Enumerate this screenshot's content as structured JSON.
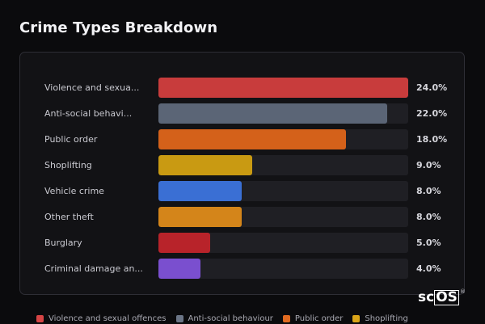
{
  "chart_data": {
    "type": "bar",
    "title": "Crime Types Breakdown",
    "categories": [
      "Violence and sexua...",
      "Anti-social behavi...",
      "Public order",
      "Shoplifting",
      "Vehicle crime",
      "Other theft",
      "Burglary",
      "Criminal damage an..."
    ],
    "values": [
      24.0,
      22.0,
      18.0,
      9.0,
      8.0,
      8.0,
      5.0,
      4.0
    ],
    "value_labels": [
      "24.0%",
      "22.0%",
      "18.0%",
      "9.0%",
      "8.0%",
      "8.0%",
      "5.0%",
      "4.0%"
    ],
    "colors": [
      "#c83c3c",
      "#5b6576",
      "#d4611a",
      "#c99a12",
      "#3a6fd4",
      "#d4851a",
      "#b8232a",
      "#7a4fcf"
    ],
    "xlim": [
      0,
      24
    ],
    "orientation": "horizontal",
    "legend": {
      "position": "bottom",
      "entries": [
        {
          "label": "Violence and sexual offences",
          "color": "#d64545"
        },
        {
          "label": "Anti-social behaviour",
          "color": "#6b7586"
        },
        {
          "label": "Public order",
          "color": "#e06a20"
        },
        {
          "label": "Shoplifting",
          "color": "#d9a418"
        }
      ]
    }
  },
  "brand": {
    "logo_prefix": "sc",
    "logo_box": "OS",
    "registered": "®"
  }
}
